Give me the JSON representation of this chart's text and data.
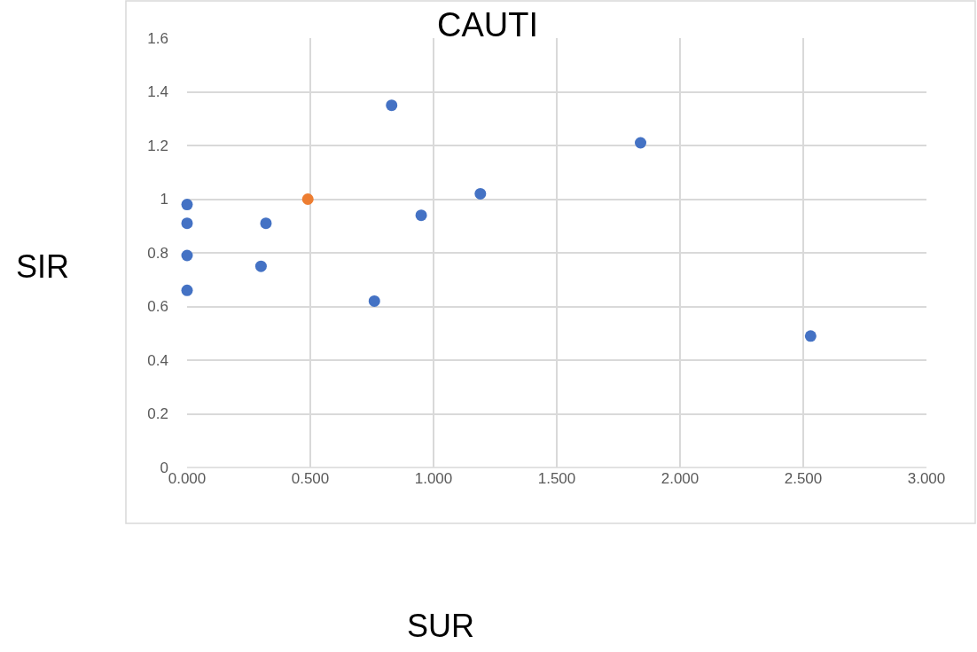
{
  "chart_data": {
    "type": "scatter",
    "title": "CAUTI",
    "xlabel": "SUR",
    "ylabel": "SIR",
    "xlim": [
      0,
      3
    ],
    "ylim": [
      0,
      1.6
    ],
    "xticks": [
      {
        "value": 0,
        "label": "0.000"
      },
      {
        "value": 0.5,
        "label": "0.500"
      },
      {
        "value": 1,
        "label": "1.000"
      },
      {
        "value": 1.5,
        "label": "1.500"
      },
      {
        "value": 2,
        "label": "2.000"
      },
      {
        "value": 2.5,
        "label": "2.500"
      },
      {
        "value": 3,
        "label": "3.000"
      }
    ],
    "yticks": [
      0,
      0.2,
      0.4,
      0.6,
      0.8,
      1,
      1.2,
      1.4,
      1.6
    ],
    "grid": true,
    "marker": "circle",
    "series": [
      {
        "color": "#4472c4",
        "x": [
          0,
          0,
          0,
          0,
          0.3,
          0.32,
          0.83,
          0.76,
          0.95,
          1.19,
          1.84,
          2.53
        ],
        "values": [
          0.98,
          0.91,
          0.79,
          0.66,
          0.75,
          0.91,
          1.35,
          0.62,
          0.94,
          1.02,
          1.21,
          0.49
        ]
      },
      {
        "color": "#ed7d31",
        "x": [
          0.49
        ],
        "values": [
          1.0
        ]
      }
    ]
  }
}
